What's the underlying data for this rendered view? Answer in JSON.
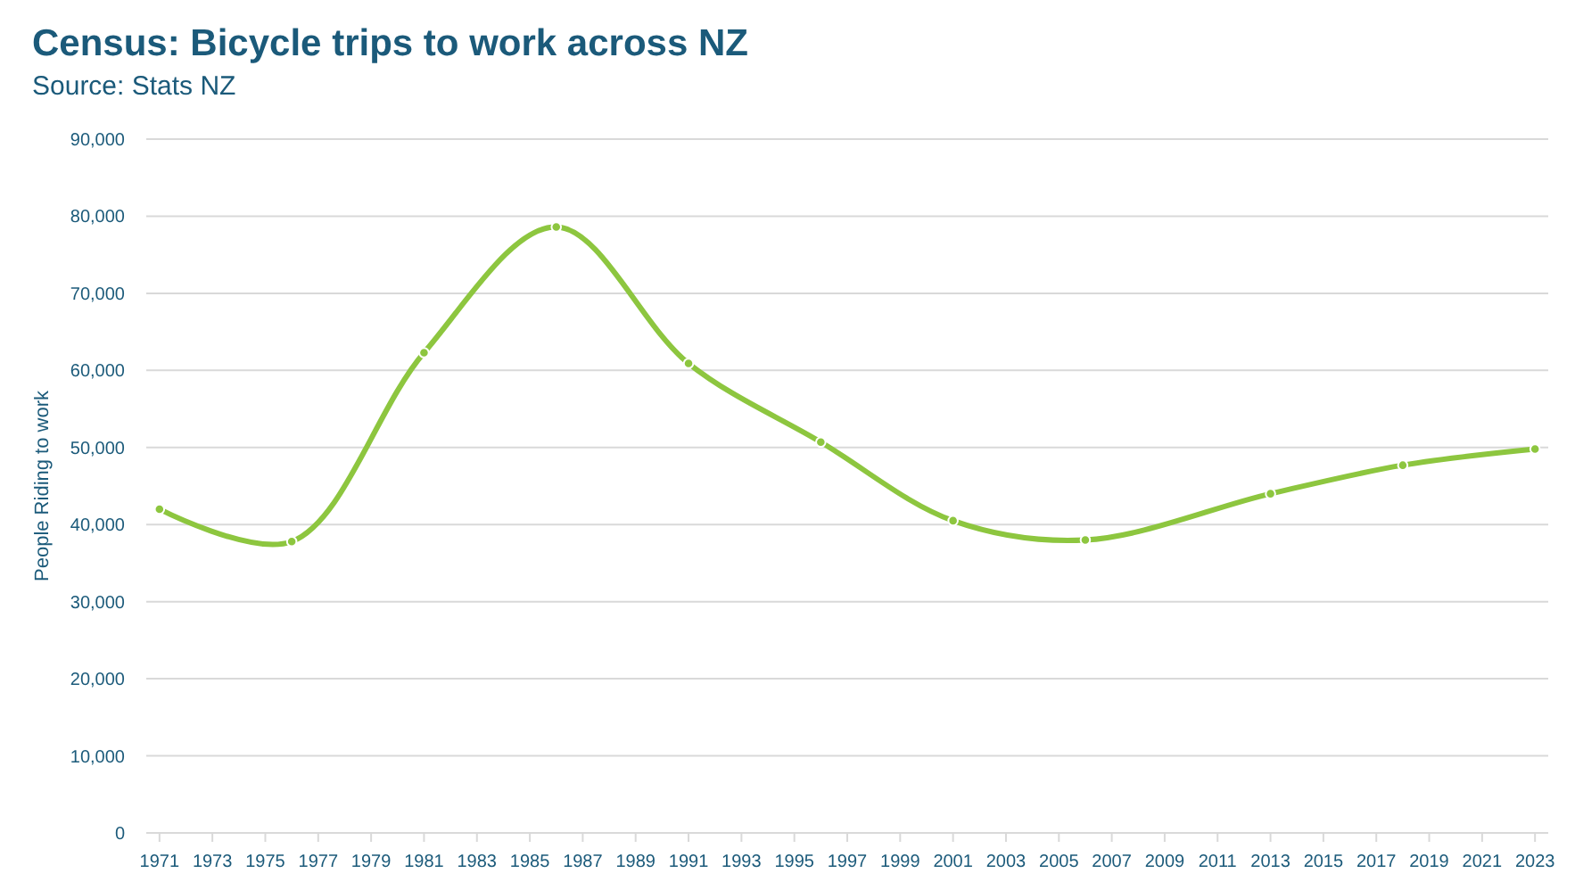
{
  "chart_data": {
    "type": "line",
    "title": "Census: Bicycle trips to work across NZ",
    "subtitle": "Source: Stats NZ",
    "ylabel": "People Riding to work",
    "x": [
      1971,
      1976,
      1981,
      1986,
      1991,
      1996,
      2001,
      2006,
      2013,
      2018,
      2023
    ],
    "series": [
      {
        "color": "#8dc63f",
        "values": [
          42000,
          37800,
          62300,
          78600,
          60900,
          50700,
          40500,
          38000,
          44000,
          47700,
          49800
        ]
      }
    ],
    "xlim": [
      1970.5,
      2023.5
    ],
    "xticks": [
      1971,
      1973,
      1975,
      1977,
      1979,
      1981,
      1983,
      1985,
      1987,
      1989,
      1991,
      1993,
      1995,
      1997,
      1999,
      2001,
      2003,
      2005,
      2007,
      2009,
      2011,
      2013,
      2015,
      2017,
      2019,
      2021,
      2023
    ],
    "ylim": [
      0,
      90000
    ],
    "yticks": [
      {
        "value": 0,
        "label": "0"
      },
      {
        "value": 10000,
        "label": "10,000"
      },
      {
        "value": 20000,
        "label": "20,000"
      },
      {
        "value": 30000,
        "label": "30,000"
      },
      {
        "value": 40000,
        "label": "40,000"
      },
      {
        "value": 50000,
        "label": "50,000"
      },
      {
        "value": 60000,
        "label": "60,000"
      },
      {
        "value": 70000,
        "label": "70,000"
      },
      {
        "value": 80000,
        "label": "80,000"
      },
      {
        "value": 90000,
        "label": "90,000"
      }
    ],
    "grid": "y",
    "marker": "circle",
    "line_style": "solid"
  }
}
